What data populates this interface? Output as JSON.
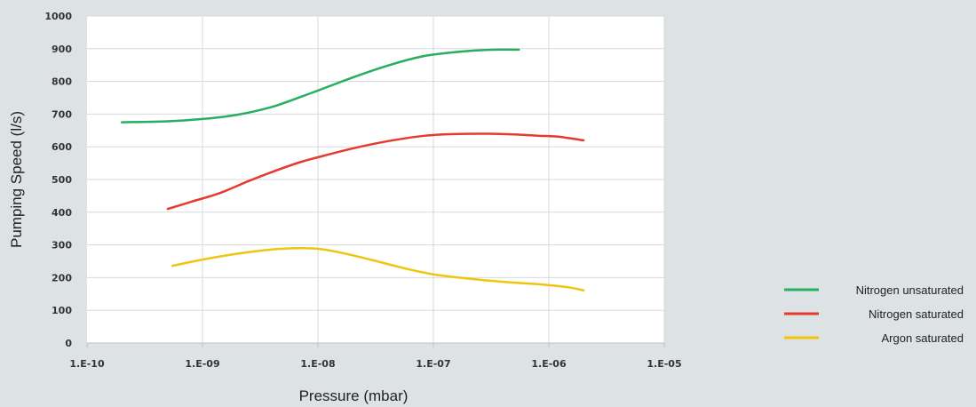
{
  "chart_data": {
    "type": "line",
    "xscale": "log",
    "xlabel": "Pressure (mbar)",
    "ylabel": "Pumping Speed (l/s)",
    "xlim": [
      1e-10,
      1e-05
    ],
    "ylim": [
      0,
      1000
    ],
    "x_ticks": [
      {
        "value": 1e-10,
        "label": "1.E-10"
      },
      {
        "value": 1e-09,
        "label": "1.E-09"
      },
      {
        "value": 1e-08,
        "label": "1.E-08"
      },
      {
        "value": 1e-07,
        "label": "1.E-07"
      },
      {
        "value": 1e-06,
        "label": "1.E-06"
      },
      {
        "value": 1e-05,
        "label": "1.E-05"
      }
    ],
    "y_ticks": [
      {
        "value": 0,
        "label": "0"
      },
      {
        "value": 100,
        "label": "100"
      },
      {
        "value": 200,
        "label": "200"
      },
      {
        "value": 300,
        "label": "300"
      },
      {
        "value": 400,
        "label": "400"
      },
      {
        "value": 500,
        "label": "500"
      },
      {
        "value": 600,
        "label": "600"
      },
      {
        "value": 700,
        "label": "700"
      },
      {
        "value": 800,
        "label": "800"
      },
      {
        "value": 900,
        "label": "900"
      },
      {
        "value": 1000,
        "label": "1000"
      }
    ],
    "grid": true,
    "legend_position": "bottom-right",
    "series": [
      {
        "name": "Nitrogen unsaturated",
        "color": "#27ae60",
        "points": [
          [
            2e-10,
            675
          ],
          [
            5e-10,
            678
          ],
          [
            1e-09,
            685
          ],
          [
            2e-09,
            698
          ],
          [
            4e-09,
            722
          ],
          [
            7e-09,
            752
          ],
          [
            1e-08,
            772
          ],
          [
            2e-08,
            812
          ],
          [
            4e-08,
            848
          ],
          [
            7e-08,
            872
          ],
          [
            1e-07,
            882
          ],
          [
            2e-07,
            893
          ],
          [
            3.5e-07,
            897
          ],
          [
            5.5e-07,
            897
          ]
        ]
      },
      {
        "name": "Nitrogen saturated",
        "color": "#e53a2e",
        "points": [
          [
            5e-10,
            410
          ],
          [
            8e-10,
            432
          ],
          [
            1.4e-09,
            458
          ],
          [
            2.5e-09,
            495
          ],
          [
            4e-09,
            523
          ],
          [
            7e-09,
            553
          ],
          [
            1e-08,
            568
          ],
          [
            2e-08,
            595
          ],
          [
            4e-08,
            617
          ],
          [
            8e-08,
            633
          ],
          [
            1.5e-07,
            639
          ],
          [
            3e-07,
            640
          ],
          [
            5e-07,
            638
          ],
          [
            8e-07,
            634
          ],
          [
            1.2e-06,
            631
          ],
          [
            2e-06,
            620
          ]
        ]
      },
      {
        "name": "Argon saturated",
        "color": "#f2c30f",
        "points": [
          [
            5.5e-10,
            236
          ],
          [
            1e-09,
            255
          ],
          [
            2e-09,
            273
          ],
          [
            4e-09,
            286
          ],
          [
            7e-09,
            290
          ],
          [
            1e-08,
            288
          ],
          [
            1.6e-08,
            276
          ],
          [
            3e-08,
            253
          ],
          [
            6e-08,
            226
          ],
          [
            1e-07,
            210
          ],
          [
            2e-07,
            197
          ],
          [
            4e-07,
            187
          ],
          [
            8e-07,
            180
          ],
          [
            1.5e-06,
            170
          ],
          [
            2e-06,
            161
          ]
        ]
      }
    ]
  }
}
